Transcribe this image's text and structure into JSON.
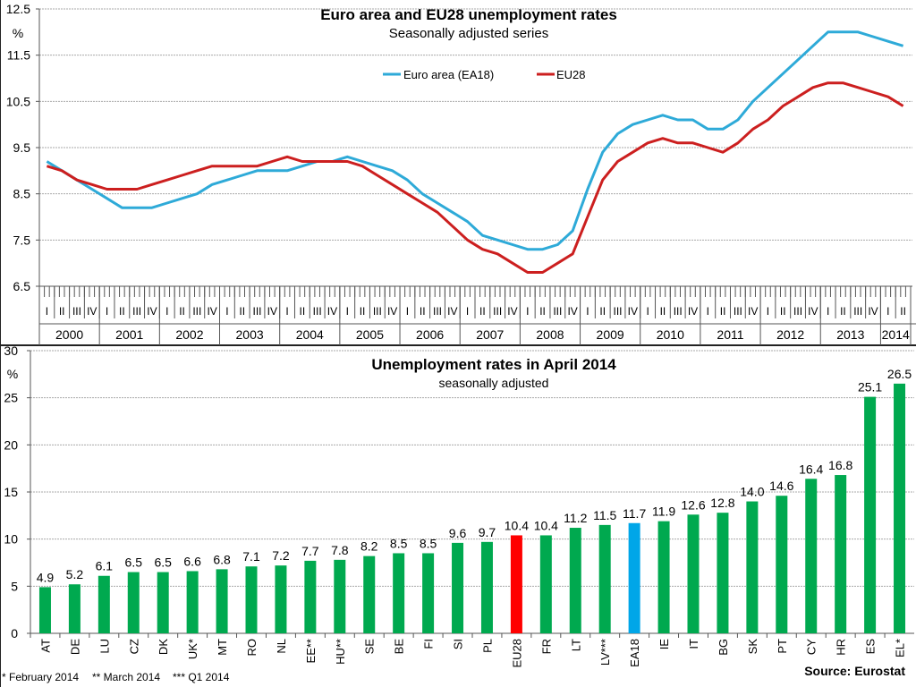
{
  "chart_data": [
    {
      "type": "line",
      "title": "Euro area and EU28 unemployment rates",
      "subtitle": "Seasonally adjusted series",
      "ylabel": "%",
      "xlabel": "",
      "ylim": [
        6.5,
        12.5
      ],
      "yticks": [
        "6.5",
        "7.5",
        "8.5",
        "9.5",
        "10.5",
        "11.5",
        "12.5"
      ],
      "grid": true,
      "legend_position": "top-center",
      "x_quarters": [
        "I",
        "II",
        "III",
        "IV"
      ],
      "x_years": [
        "2000",
        "2001",
        "2002",
        "2003",
        "2004",
        "2005",
        "2006",
        "2007",
        "2008",
        "2009",
        "2010",
        "2011",
        "2012",
        "2013",
        "2014"
      ],
      "x_note": "Quarterly values; 2014 covers quarters I and II (up to April 2014)",
      "x": [
        "2000Q1",
        "2000Q2",
        "2000Q3",
        "2000Q4",
        "2001Q1",
        "2001Q2",
        "2001Q3",
        "2001Q4",
        "2002Q1",
        "2002Q2",
        "2002Q3",
        "2002Q4",
        "2003Q1",
        "2003Q2",
        "2003Q3",
        "2003Q4",
        "2004Q1",
        "2004Q2",
        "2004Q3",
        "2004Q4",
        "2005Q1",
        "2005Q2",
        "2005Q3",
        "2005Q4",
        "2006Q1",
        "2006Q2",
        "2006Q3",
        "2006Q4",
        "2007Q1",
        "2007Q2",
        "2007Q3",
        "2007Q4",
        "2008Q1",
        "2008Q2",
        "2008Q3",
        "2008Q4",
        "2009Q1",
        "2009Q2",
        "2009Q3",
        "2009Q4",
        "2010Q1",
        "2010Q2",
        "2010Q3",
        "2010Q4",
        "2011Q1",
        "2011Q2",
        "2011Q3",
        "2011Q4",
        "2012Q1",
        "2012Q2",
        "2012Q3",
        "2012Q4",
        "2013Q1",
        "2013Q2",
        "2013Q3",
        "2013Q4",
        "2014Q1",
        "2014Q2"
      ],
      "series": [
        {
          "name": "Euro area (EA18)",
          "color": "#2eaad8",
          "values": [
            9.2,
            9.0,
            8.8,
            8.6,
            8.4,
            8.2,
            8.2,
            8.2,
            8.3,
            8.4,
            8.5,
            8.7,
            8.8,
            8.9,
            9.0,
            9.0,
            9.0,
            9.1,
            9.2,
            9.2,
            9.3,
            9.2,
            9.1,
            9.0,
            8.8,
            8.5,
            8.3,
            8.1,
            7.9,
            7.6,
            7.5,
            7.4,
            7.3,
            7.3,
            7.4,
            7.7,
            8.6,
            9.4,
            9.8,
            10.0,
            10.1,
            10.2,
            10.1,
            10.1,
            9.9,
            9.9,
            10.1,
            10.5,
            10.8,
            11.1,
            11.4,
            11.7,
            12.0,
            12.0,
            12.0,
            11.9,
            11.8,
            11.7
          ]
        },
        {
          "name": "EU28",
          "color": "#cc1f1f",
          "values": [
            9.1,
            9.0,
            8.8,
            8.7,
            8.6,
            8.6,
            8.6,
            8.7,
            8.8,
            8.9,
            9.0,
            9.1,
            9.1,
            9.1,
            9.1,
            9.2,
            9.3,
            9.2,
            9.2,
            9.2,
            9.2,
            9.1,
            8.9,
            8.7,
            8.5,
            8.3,
            8.1,
            7.8,
            7.5,
            7.3,
            7.2,
            7.0,
            6.8,
            6.8,
            7.0,
            7.2,
            8.0,
            8.8,
            9.2,
            9.4,
            9.6,
            9.7,
            9.6,
            9.6,
            9.5,
            9.4,
            9.6,
            9.9,
            10.1,
            10.4,
            10.6,
            10.8,
            10.9,
            10.9,
            10.8,
            10.7,
            10.6,
            10.4
          ]
        }
      ]
    },
    {
      "type": "bar",
      "title": "Unemployment rates in April 2014",
      "subtitle": "seasonally adjusted",
      "ylabel": "%",
      "xlabel": "",
      "ylim": [
        0,
        30
      ],
      "yticks": [
        "0",
        "5",
        "10",
        "15",
        "20",
        "25",
        "30"
      ],
      "grid": true,
      "categories": [
        "AT",
        "DE",
        "LU",
        "CZ",
        "DK",
        "UK*",
        "MT",
        "RO",
        "NL",
        "EE**",
        "HU**",
        "SE",
        "BE",
        "FI",
        "SI",
        "PL",
        "EU28",
        "FR",
        "LT",
        "LV***",
        "EA18",
        "IE",
        "IT",
        "BG",
        "SK",
        "PT",
        "CY",
        "HR",
        "ES",
        "EL*"
      ],
      "values": [
        4.9,
        5.2,
        6.1,
        6.5,
        6.5,
        6.6,
        6.8,
        7.1,
        7.2,
        7.7,
        7.8,
        8.2,
        8.5,
        8.5,
        9.6,
        9.7,
        10.4,
        10.4,
        11.2,
        11.5,
        11.7,
        11.9,
        12.6,
        12.8,
        14.0,
        14.6,
        16.4,
        16.8,
        25.1,
        26.5
      ],
      "labels": [
        "4.9",
        "5.2",
        "6.1",
        "6.5",
        "6.5",
        "6.6",
        "6.8",
        "7.1",
        "7.2",
        "7.7",
        "7.8",
        "8.2",
        "8.5",
        "8.5",
        "9.6",
        "9.7",
        "10.4",
        "10.4",
        "11.2",
        "11.5",
        "11.7",
        "11.9",
        "12.6",
        "12.8",
        "14.0",
        "14.6",
        "16.4",
        "16.8",
        "25.1",
        "26.5"
      ],
      "colors": {
        "default": "#00a94f",
        "EU28": "#ff0000",
        "EA18": "#00a6e8"
      }
    }
  ],
  "footnotes": [
    "* February 2014",
    "** March 2014",
    "*** Q1 2014"
  ],
  "source": "Source: Eurostat"
}
